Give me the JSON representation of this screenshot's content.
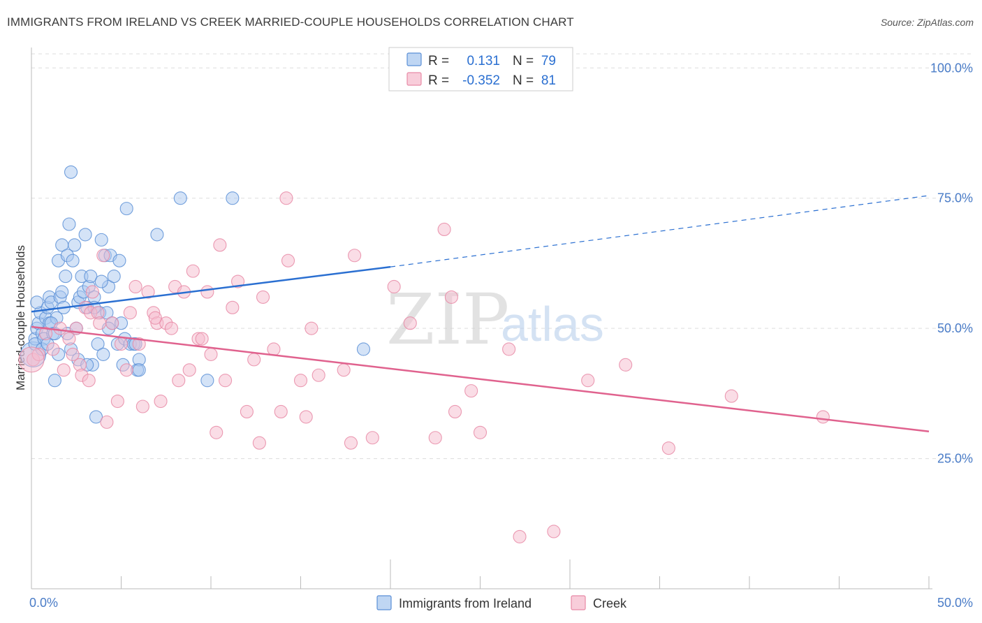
{
  "title": "IMMIGRANTS FROM IRELAND VS CREEK MARRIED-COUPLE HOUSEHOLDS CORRELATION CHART",
  "source": "Source: ZipAtlas.com",
  "watermark": {
    "zip": "ZIP",
    "atlas": "atlas"
  },
  "legend": {
    "r_label": "R =",
    "n_label": "N =",
    "series": [
      {
        "r": "0.131",
        "n": "79"
      },
      {
        "r": "-0.352",
        "n": "81"
      }
    ]
  },
  "colors": {
    "ireland_fill": "#a9c8ef",
    "ireland_stroke": "#5b8fd6",
    "ireland_line": "#2a6fd1",
    "creek_fill": "#f6bccd",
    "creek_stroke": "#e88aa6",
    "creek_line": "#e0628e",
    "tick_text": "#4a7cc7",
    "grid": "#dddddd"
  },
  "chart_data": {
    "type": "scatter",
    "title": "IMMIGRANTS FROM IRELAND VS CREEK MARRIED-COUPLE HOUSEHOLDS CORRELATION CHART",
    "xlabel": "",
    "ylabel": "Married-couple Households",
    "xlim": [
      0,
      50
    ],
    "ylim": [
      0,
      105
    ],
    "x_tick_labels": [
      "0.0%",
      "50.0%"
    ],
    "y_ticks": [
      25,
      50,
      75,
      100
    ],
    "y_tick_labels": [
      "25.0%",
      "50.0%",
      "75.0%",
      "100.0%"
    ],
    "series": [
      {
        "name": "Immigrants from Ireland",
        "r": 0.131,
        "n": 79,
        "trend": {
          "x0": 0,
          "y0": 53.2,
          "x1": 20,
          "y1": 61.8,
          "dash_x1": 50,
          "dash_y1": 75.5
        },
        "points": [
          [
            0.1,
            45
          ],
          [
            0.2,
            48
          ],
          [
            0.2,
            47
          ],
          [
            0.3,
            50
          ],
          [
            0.4,
            51
          ],
          [
            0.5,
            53
          ],
          [
            0.6,
            49
          ],
          [
            0.7,
            48
          ],
          [
            0.8,
            52
          ],
          [
            0.9,
            54
          ],
          [
            1.0,
            56
          ],
          [
            1.0,
            51
          ],
          [
            1.1,
            55
          ],
          [
            1.2,
            49
          ],
          [
            1.3,
            40
          ],
          [
            1.4,
            52
          ],
          [
            1.5,
            63
          ],
          [
            1.5,
            45
          ],
          [
            1.6,
            56
          ],
          [
            1.7,
            66
          ],
          [
            1.8,
            54
          ],
          [
            1.9,
            60
          ],
          [
            2.0,
            64
          ],
          [
            2.0,
            49
          ],
          [
            2.1,
            70
          ],
          [
            2.2,
            46
          ],
          [
            2.3,
            63
          ],
          [
            2.4,
            66
          ],
          [
            2.5,
            50
          ],
          [
            2.6,
            55
          ],
          [
            2.7,
            56
          ],
          [
            2.8,
            60
          ],
          [
            2.9,
            57
          ],
          [
            3.0,
            68
          ],
          [
            3.1,
            54
          ],
          [
            3.2,
            58
          ],
          [
            3.3,
            60
          ],
          [
            3.4,
            43
          ],
          [
            3.5,
            56
          ],
          [
            3.6,
            33
          ],
          [
            3.7,
            47
          ],
          [
            3.8,
            53
          ],
          [
            3.9,
            67
          ],
          [
            4.0,
            45
          ],
          [
            4.1,
            64
          ],
          [
            4.2,
            53
          ],
          [
            4.3,
            58
          ],
          [
            4.4,
            64
          ],
          [
            4.5,
            51
          ],
          [
            4.6,
            60
          ],
          [
            4.8,
            47
          ],
          [
            4.9,
            63
          ],
          [
            5.0,
            51
          ],
          [
            5.1,
            43
          ],
          [
            5.2,
            48
          ],
          [
            5.3,
            73
          ],
          [
            5.5,
            47
          ],
          [
            5.7,
            47
          ],
          [
            5.9,
            42
          ],
          [
            6.0,
            44
          ],
          [
            0.3,
            55
          ],
          [
            0.6,
            46
          ],
          [
            0.9,
            47
          ],
          [
            1.1,
            51
          ],
          [
            1.7,
            57
          ],
          [
            2.2,
            80
          ],
          [
            2.6,
            44
          ],
          [
            3.1,
            43
          ],
          [
            3.5,
            54
          ],
          [
            3.9,
            59
          ],
          [
            4.3,
            50
          ],
          [
            5.8,
            47
          ],
          [
            6.0,
            42
          ],
          [
            7.0,
            68
          ],
          [
            8.3,
            75
          ],
          [
            9.8,
            40
          ],
          [
            11.2,
            75
          ],
          [
            18.5,
            46
          ],
          [
            1.3,
            49
          ]
        ]
      },
      {
        "name": "Creek",
        "r": -0.352,
        "n": 81,
        "trend": {
          "x0": 0,
          "y0": 50.3,
          "x1": 50,
          "y1": 30.2
        },
        "points": [
          [
            0.1,
            44
          ],
          [
            0.4,
            45
          ],
          [
            0.8,
            49
          ],
          [
            1.2,
            46
          ],
          [
            1.6,
            50
          ],
          [
            1.8,
            42
          ],
          [
            2.1,
            48
          ],
          [
            2.3,
            45
          ],
          [
            2.5,
            50
          ],
          [
            2.7,
            43
          ],
          [
            2.8,
            41
          ],
          [
            3.0,
            54
          ],
          [
            3.3,
            53
          ],
          [
            3.4,
            57
          ],
          [
            3.7,
            53
          ],
          [
            3.8,
            51
          ],
          [
            4.0,
            64
          ],
          [
            4.2,
            32
          ],
          [
            4.5,
            51
          ],
          [
            4.8,
            36
          ],
          [
            5.0,
            47
          ],
          [
            5.3,
            42
          ],
          [
            5.5,
            53
          ],
          [
            5.8,
            58
          ],
          [
            6.0,
            47
          ],
          [
            6.2,
            35
          ],
          [
            6.5,
            57
          ],
          [
            6.8,
            53
          ],
          [
            7.0,
            51
          ],
          [
            7.2,
            36
          ],
          [
            7.5,
            51
          ],
          [
            7.8,
            50
          ],
          [
            8.0,
            58
          ],
          [
            8.2,
            40
          ],
          [
            8.5,
            57
          ],
          [
            8.8,
            42
          ],
          [
            9.0,
            61
          ],
          [
            9.3,
            48
          ],
          [
            9.5,
            48
          ],
          [
            9.8,
            57
          ],
          [
            10.0,
            45
          ],
          [
            10.3,
            30
          ],
          [
            10.5,
            66
          ],
          [
            10.8,
            40
          ],
          [
            11.2,
            54
          ],
          [
            11.5,
            59
          ],
          [
            12.0,
            34
          ],
          [
            12.4,
            44
          ],
          [
            12.7,
            28
          ],
          [
            13.5,
            46
          ],
          [
            13.9,
            34
          ],
          [
            14.2,
            75
          ],
          [
            14.3,
            63
          ],
          [
            15.0,
            40
          ],
          [
            15.3,
            33
          ],
          [
            15.6,
            50
          ],
          [
            16.0,
            41
          ],
          [
            17.4,
            42
          ],
          [
            17.8,
            28
          ],
          [
            18.0,
            64
          ],
          [
            19.0,
            29
          ],
          [
            20.2,
            58
          ],
          [
            21.1,
            51
          ],
          [
            22.5,
            29
          ],
          [
            23.0,
            69
          ],
          [
            23.4,
            56
          ],
          [
            23.6,
            34
          ],
          [
            24.5,
            38
          ],
          [
            25.0,
            30
          ],
          [
            26.6,
            46
          ],
          [
            27.2,
            10
          ],
          [
            29.1,
            11
          ],
          [
            31.0,
            40
          ],
          [
            33.1,
            43
          ],
          [
            35.5,
            27
          ],
          [
            39.0,
            37
          ],
          [
            44.1,
            33
          ],
          [
            3.2,
            40
          ],
          [
            6.9,
            52
          ],
          [
            12.9,
            56
          ],
          [
            0.0,
            44
          ]
        ]
      }
    ]
  },
  "bottom_legend": [
    {
      "label": "Immigrants from Ireland"
    },
    {
      "label": "Creek"
    }
  ]
}
